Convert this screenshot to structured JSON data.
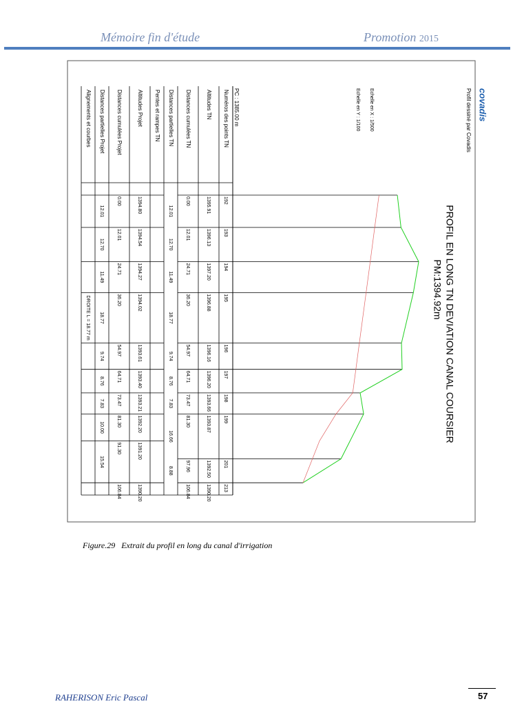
{
  "header": {
    "left": "Mémoire fin d'étude",
    "right_word": "Promotion",
    "right_year": "2015"
  },
  "drawing": {
    "credit": "Profil dessiné par Covadis",
    "logo": "covadis",
    "scale_x": "Echelle en X : 1/500",
    "scale_y": "Echelle en Y : 1/100",
    "title": "PROFIL EN LONG TN DEVIATION CANAL COURSIER",
    "subtitle": "PM:1394.92m",
    "datum": "PC : 1385.00 m",
    "row_labels": [
      "Numéros des points TN",
      "Altitudes TN",
      "Distances cumulées TN",
      "Distances partielles TN",
      "Pentes et rampes TN",
      "Altitudes Projet",
      "Distances cumulées Projet",
      "Distances partielles Projet",
      "Alignements et courbes"
    ],
    "tn_points": [
      {
        "number": "192",
        "dist": "0.00",
        "alt": "1395.91"
      },
      {
        "number": "193",
        "dist": "12.01",
        "alt": "1396.13"
      },
      {
        "number": "194",
        "dist": "24.71",
        "alt": "1397.20"
      },
      {
        "number": "195",
        "dist": "36.20",
        "alt": "1396.88"
      },
      {
        "number": "196",
        "dist": "54.97",
        "alt": "1396.16"
      },
      {
        "number": "197",
        "dist": "64.71",
        "alt": "1396.20"
      },
      {
        "number": "198",
        "dist": "73.47",
        "alt": "1393.66"
      },
      {
        "number": "199",
        "dist": "81.30",
        "alt": "1393.87"
      },
      {
        "number": "201",
        "dist": "97.96",
        "alt": "1392.50"
      },
      {
        "number": "213",
        "dist": "106.84",
        "alt": "1390.20"
      }
    ],
    "tn_partials": [
      "12.01",
      "12.70",
      "11.49",
      "18.77",
      "9.74",
      "8.76",
      "7.83",
      "16.66",
      "8.88"
    ],
    "projet_points": [
      {
        "dist": "0.00",
        "alt": "1394.80"
      },
      {
        "dist": "12.01",
        "alt": "1394.54"
      },
      {
        "dist": "24.71",
        "alt": "1394.27"
      },
      {
        "dist": "36.20",
        "alt": "1394.02"
      },
      {
        "dist": "54.97",
        "alt": "1393.61"
      },
      {
        "dist": "64.71",
        "alt": "1393.40"
      },
      {
        "dist": "73.47",
        "alt": "1393.21"
      },
      {
        "dist": "81.30",
        "alt": "1392.20"
      },
      {
        "dist": "91.30",
        "alt": "1391.20"
      },
      {
        "dist": "106.84",
        "alt": "1390.20"
      }
    ],
    "projet_partials": [
      "12.01",
      "12.70",
      "11.49",
      "18.77",
      "9.74",
      "8.76",
      "7.83",
      "10.00",
      "15.54"
    ],
    "alignment": "DROITE L = 18.77 m"
  },
  "caption": {
    "number": "Figure.29",
    "text": "Extrait du profil en long du canal d'irrigation"
  },
  "footer": {
    "author": "RAHERISON  Eric Pascal",
    "page": "57"
  }
}
